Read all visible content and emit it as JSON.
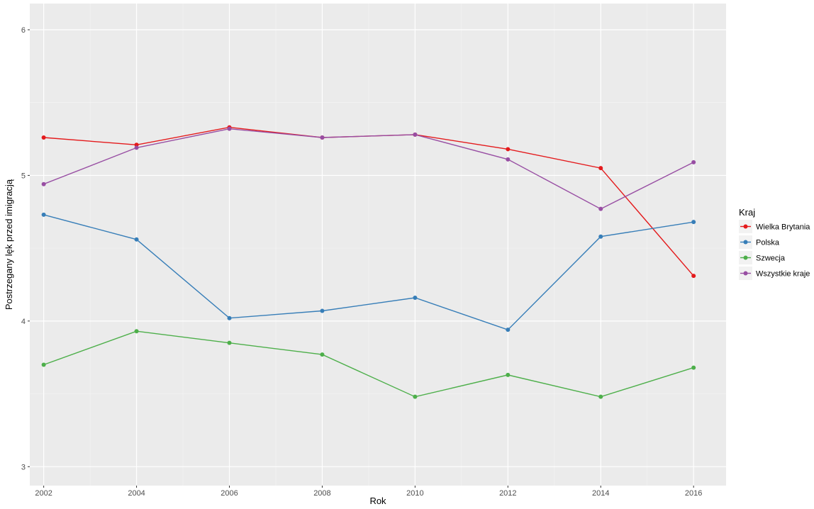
{
  "chart_data": {
    "type": "line",
    "xlabel": "Rok",
    "ylabel": "Postrzegany lęk przed imigracją",
    "x": [
      2002,
      2004,
      2006,
      2008,
      2010,
      2012,
      2014,
      2016
    ],
    "xticks": [
      "2002",
      "2004",
      "2006",
      "2008",
      "2010",
      "2012",
      "2014",
      "2016"
    ],
    "xlim": [
      2001.7,
      2016.7
    ],
    "yticks": [
      "3",
      "4",
      "5",
      "6"
    ],
    "ylim": [
      2.87,
      6.18
    ],
    "grid": true,
    "legend_title": "Kraj",
    "legend_position": "right",
    "series": [
      {
        "name": "Wielka Brytania",
        "color": "#e41a1c",
        "values": [
          5.26,
          5.21,
          5.33,
          5.26,
          5.28,
          5.18,
          5.05,
          4.31
        ]
      },
      {
        "name": "Polska",
        "color": "#377eb8",
        "values": [
          4.73,
          4.56,
          4.02,
          4.07,
          4.16,
          3.94,
          4.58,
          4.68
        ]
      },
      {
        "name": "Szwecja",
        "color": "#4daf4a",
        "values": [
          3.7,
          3.93,
          3.85,
          3.77,
          3.48,
          3.63,
          3.48,
          3.68
        ]
      },
      {
        "name": "Wszystkie kraje",
        "color": "#984ea3",
        "values": [
          4.94,
          5.19,
          5.32,
          5.26,
          5.28,
          5.11,
          4.77,
          5.09
        ]
      }
    ]
  }
}
